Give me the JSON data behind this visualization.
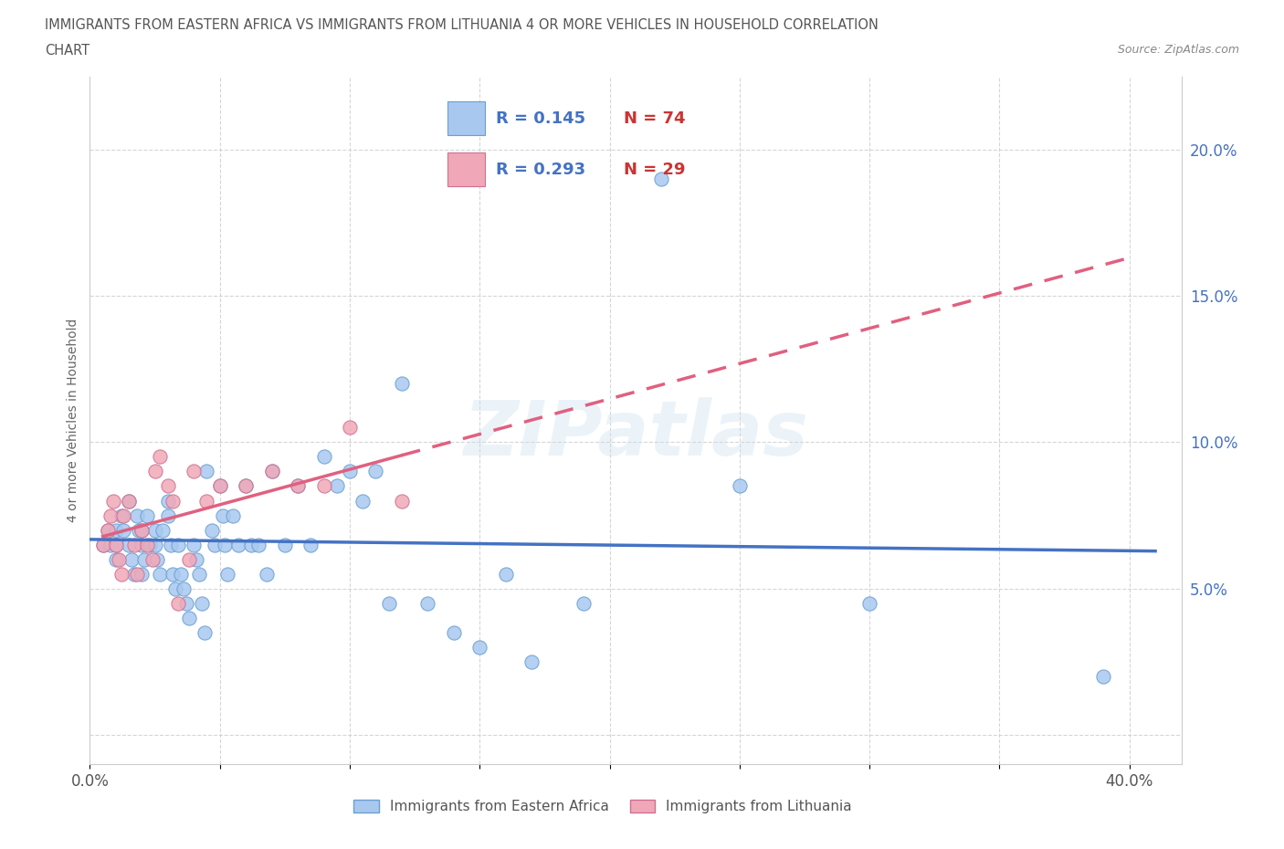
{
  "title_line1": "IMMIGRANTS FROM EASTERN AFRICA VS IMMIGRANTS FROM LITHUANIA 4 OR MORE VEHICLES IN HOUSEHOLD CORRELATION",
  "title_line2": "CHART",
  "source": "Source: ZipAtlas.com",
  "ylabel": "4 or more Vehicles in Household",
  "xlim": [
    0.0,
    0.42
  ],
  "ylim": [
    -0.01,
    0.225
  ],
  "xticks": [
    0.0,
    0.05,
    0.1,
    0.15,
    0.2,
    0.25,
    0.3,
    0.35,
    0.4
  ],
  "yticks": [
    0.0,
    0.05,
    0.1,
    0.15,
    0.2
  ],
  "ytick_labels": [
    "",
    "5.0%",
    "10.0%",
    "15.0%",
    "20.0%"
  ],
  "watermark": "ZIPatlas",
  "legend_r1_text": "R = 0.145   N = 74",
  "legend_r2_text": "R = 0.293   N = 29",
  "legend_r1_R": "R = 0.145",
  "legend_r1_N": "N = 74",
  "legend_r2_R": "R = 0.293",
  "legend_r2_N": "N = 29",
  "color_eastern": "#a8c8f0",
  "color_eastern_edge": "#6aa0d0",
  "color_lithuania": "#f0a8b8",
  "color_lithuania_edge": "#d07090",
  "color_line_eastern": "#4472c4",
  "color_line_lithuania": "#e06080",
  "color_r_text": "#4472c4",
  "color_n_text": "#cc3333",
  "color_ytick": "#4472c4",
  "background_color": "#ffffff",
  "grid_color": "#cccccc",
  "eastern_africa_x": [
    0.005,
    0.007,
    0.008,
    0.01,
    0.01,
    0.01,
    0.012,
    0.013,
    0.015,
    0.015,
    0.016,
    0.017,
    0.018,
    0.019,
    0.02,
    0.02,
    0.02,
    0.021,
    0.022,
    0.023,
    0.025,
    0.025,
    0.026,
    0.027,
    0.028,
    0.03,
    0.03,
    0.031,
    0.032,
    0.033,
    0.034,
    0.035,
    0.036,
    0.037,
    0.038,
    0.04,
    0.041,
    0.042,
    0.043,
    0.044,
    0.045,
    0.047,
    0.048,
    0.05,
    0.051,
    0.052,
    0.053,
    0.055,
    0.057,
    0.06,
    0.062,
    0.065,
    0.068,
    0.07,
    0.075,
    0.08,
    0.085,
    0.09,
    0.095,
    0.1,
    0.105,
    0.11,
    0.115,
    0.12,
    0.13,
    0.14,
    0.15,
    0.16,
    0.17,
    0.19,
    0.22,
    0.25,
    0.3,
    0.39
  ],
  "eastern_africa_y": [
    0.065,
    0.07,
    0.065,
    0.07,
    0.065,
    0.06,
    0.075,
    0.07,
    0.065,
    0.08,
    0.06,
    0.055,
    0.075,
    0.07,
    0.07,
    0.065,
    0.055,
    0.06,
    0.075,
    0.065,
    0.07,
    0.065,
    0.06,
    0.055,
    0.07,
    0.08,
    0.075,
    0.065,
    0.055,
    0.05,
    0.065,
    0.055,
    0.05,
    0.045,
    0.04,
    0.065,
    0.06,
    0.055,
    0.045,
    0.035,
    0.09,
    0.07,
    0.065,
    0.085,
    0.075,
    0.065,
    0.055,
    0.075,
    0.065,
    0.085,
    0.065,
    0.065,
    0.055,
    0.09,
    0.065,
    0.085,
    0.065,
    0.095,
    0.085,
    0.09,
    0.08,
    0.09,
    0.045,
    0.12,
    0.045,
    0.035,
    0.03,
    0.055,
    0.025,
    0.045,
    0.19,
    0.085,
    0.045,
    0.02
  ],
  "lithuania_x": [
    0.005,
    0.007,
    0.008,
    0.009,
    0.01,
    0.011,
    0.012,
    0.013,
    0.015,
    0.017,
    0.018,
    0.02,
    0.022,
    0.024,
    0.025,
    0.027,
    0.03,
    0.032,
    0.034,
    0.038,
    0.04,
    0.045,
    0.05,
    0.06,
    0.07,
    0.08,
    0.09,
    0.1,
    0.12
  ],
  "lithuania_y": [
    0.065,
    0.07,
    0.075,
    0.08,
    0.065,
    0.06,
    0.055,
    0.075,
    0.08,
    0.065,
    0.055,
    0.07,
    0.065,
    0.06,
    0.09,
    0.095,
    0.085,
    0.08,
    0.045,
    0.06,
    0.09,
    0.08,
    0.085,
    0.085,
    0.09,
    0.085,
    0.085,
    0.105,
    0.08
  ]
}
